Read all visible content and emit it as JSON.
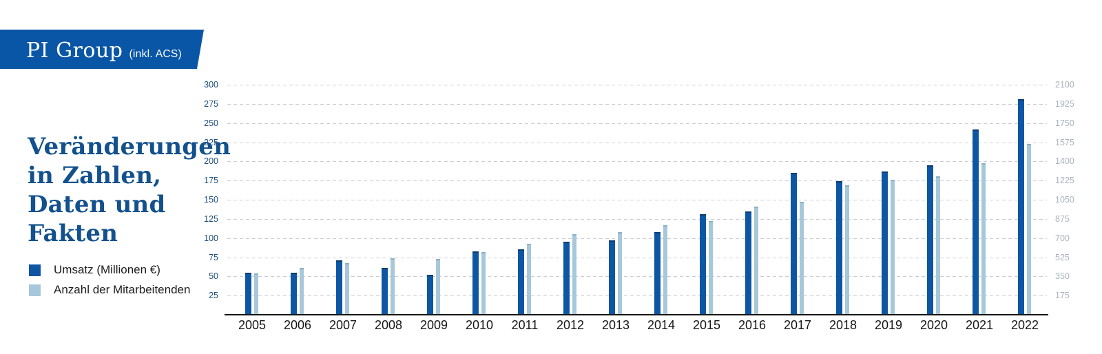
{
  "banner": {
    "title": "PI Group",
    "suffix": "(inkl. ACS)",
    "bg_color": "#0a56a6",
    "text_color": "#ffffff"
  },
  "heading": {
    "lines": [
      "Veränderungen",
      "in Zahlen,",
      "Daten und",
      "Fakten"
    ],
    "color": "#12518d"
  },
  "legend": {
    "items": [
      {
        "label": "Umsatz (Millionen €)",
        "color": "#0d56a4"
      },
      {
        "label": "Anzahl der Mitarbeitenden",
        "color": "#a7c7da"
      }
    ]
  },
  "chart_data": {
    "type": "bar",
    "categories": [
      "2005",
      "2006",
      "2007",
      "2008",
      "2009",
      "2010",
      "2011",
      "2012",
      "2013",
      "2014",
      "2015",
      "2016",
      "2017",
      "2018",
      "2019",
      "2020",
      "2021",
      "2022"
    ],
    "series": [
      {
        "name": "Umsatz (Millionen €)",
        "axis": "left",
        "color": "#0d56a4",
        "cap_color": "#093c72",
        "values": [
          55,
          55,
          71,
          61,
          52,
          83,
          85,
          95,
          97,
          108,
          131,
          135,
          185,
          174,
          187,
          195,
          242,
          281
        ]
      },
      {
        "name": "Anzahl der Mitarbeitenden",
        "axis": "right",
        "color": "#a7c7da",
        "cap_color": "#8cb0c6",
        "values": [
          380,
          425,
          470,
          515,
          510,
          570,
          650,
          735,
          755,
          820,
          855,
          985,
          1030,
          1185,
          1230,
          1265,
          1385,
          1560
        ]
      }
    ],
    "left_axis": {
      "ticks": [
        300,
        275,
        250,
        225,
        200,
        175,
        150,
        125,
        100,
        75,
        50,
        25
      ],
      "max": 300,
      "min": 0,
      "label_color": "#1e4e7c"
    },
    "right_axis": {
      "ticks": [
        2100,
        1925,
        1750,
        1575,
        1400,
        1225,
        1050,
        875,
        700,
        525,
        350,
        175
      ],
      "max": 2100,
      "min": 0,
      "label_color": "#a9b3be"
    },
    "grid": {
      "style": "dashed",
      "color": "#c9cdd3"
    },
    "x_label_color": "#161616",
    "axis_line_color": "#161616",
    "legend_position": "left",
    "title": ""
  }
}
